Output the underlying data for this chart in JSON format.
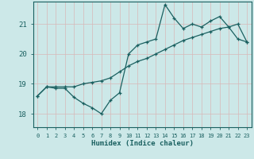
{
  "title": "",
  "xlabel": "Humidex (Indice chaleur)",
  "bg_color": "#cce8e8",
  "grid_color": "#c0d8d8",
  "line_color": "#1a6060",
  "xlim": [
    -0.5,
    23.5
  ],
  "ylim": [
    17.55,
    21.75
  ],
  "yticks": [
    18,
    19,
    20,
    21
  ],
  "xticks": [
    0,
    1,
    2,
    3,
    4,
    5,
    6,
    7,
    8,
    9,
    10,
    11,
    12,
    13,
    14,
    15,
    16,
    17,
    18,
    19,
    20,
    21,
    22,
    23
  ],
  "line1_x": [
    0,
    1,
    2,
    3,
    4,
    5,
    6,
    7,
    8,
    9,
    10,
    11,
    12,
    13,
    14,
    15,
    16,
    17,
    18,
    19,
    20,
    21,
    22,
    23
  ],
  "line1_y": [
    18.6,
    18.9,
    18.85,
    18.85,
    18.55,
    18.35,
    18.2,
    18.0,
    18.45,
    18.7,
    20.0,
    20.3,
    20.4,
    20.5,
    21.65,
    21.2,
    20.85,
    21.0,
    20.9,
    21.1,
    21.25,
    20.9,
    20.5,
    20.4
  ],
  "line2_x": [
    0,
    1,
    2,
    3,
    4,
    5,
    6,
    7,
    8,
    9,
    10,
    11,
    12,
    13,
    14,
    15,
    16,
    17,
    18,
    19,
    20,
    21,
    22,
    23
  ],
  "line2_y": [
    18.6,
    18.9,
    18.9,
    18.9,
    18.9,
    19.0,
    19.05,
    19.1,
    19.2,
    19.4,
    19.6,
    19.75,
    19.85,
    20.0,
    20.15,
    20.3,
    20.45,
    20.55,
    20.65,
    20.75,
    20.85,
    20.9,
    21.0,
    20.4
  ],
  "xlabel_fontsize": 6.5,
  "ytick_fontsize": 6.5,
  "xtick_fontsize": 5.0
}
